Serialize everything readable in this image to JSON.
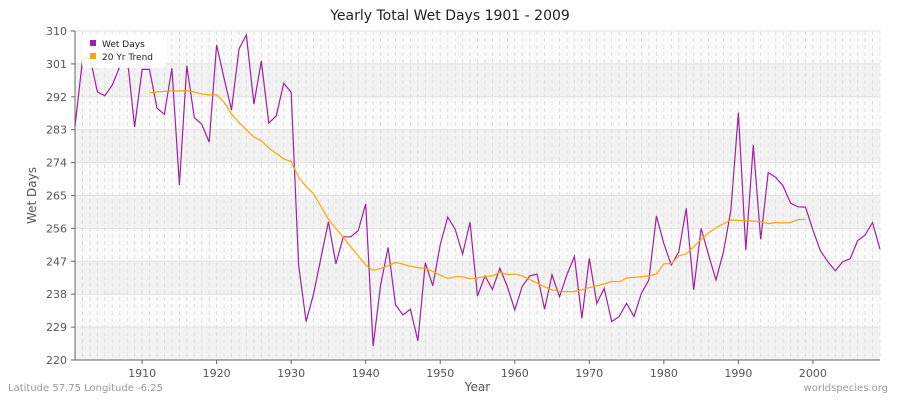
{
  "chart_data": {
    "type": "line",
    "title": "Yearly Total Wet Days 1901 - 2009",
    "xlabel": "Year",
    "ylabel": "Wet Days",
    "xlim": [
      1901,
      2009
    ],
    "ylim": [
      220,
      310
    ],
    "yticks": [
      220,
      229,
      238,
      247,
      256,
      265,
      274,
      283,
      292,
      301,
      310
    ],
    "xticks": [
      1910,
      1920,
      1930,
      1940,
      1950,
      1960,
      1970,
      1980,
      1990,
      2000
    ],
    "grid": true,
    "legend": "top-left",
    "series": [
      {
        "name": "Wet Days",
        "color": "#a020a0",
        "x_start": 1901,
        "values": [
          284,
          302,
          303,
          293.3,
          292.3,
          295.2,
          300.2,
          303,
          283.7,
          299.5,
          299.5,
          288.9,
          287.2,
          299.8,
          267.9,
          300.5,
          286.3,
          284.5,
          279.6,
          306.2,
          297,
          288.4,
          305.1,
          308.9,
          290,
          301.8,
          284.8,
          286.8,
          295.7,
          293.2,
          246,
          230.5,
          238,
          248,
          257.8,
          246.3,
          253.7,
          253.7,
          255.4,
          262.7,
          223.8,
          240.5,
          250.8,
          235.1,
          232.3,
          233.9,
          225.2,
          246.6,
          240.3,
          251.5,
          259.1,
          255.8,
          249,
          257.7,
          237.5,
          243,
          239.3,
          245.1,
          240.1,
          233.7,
          240.1,
          243,
          243.5,
          233.9,
          243.3,
          237.3,
          243.3,
          248.3,
          231.4,
          247.8,
          235.5,
          239.6,
          230.5,
          231.9,
          235.5,
          231.9,
          238.3,
          241.9,
          259.4,
          251.9,
          246,
          249.6,
          261.5,
          239.2,
          256,
          248.7,
          241.9,
          249.6,
          261,
          287.7,
          250.1,
          278.8,
          253,
          271.3,
          270,
          267.6,
          262.9,
          261.9,
          261.8,
          255.6,
          249.9,
          246.9,
          244.4,
          246.9,
          247.7,
          252.6,
          254.2,
          257.6,
          250.3
        ]
      },
      {
        "name": "20 Yr Trend",
        "color": "#ffa500",
        "x_start": 1911,
        "values": [
          293.1,
          293.3,
          293.5,
          293.6,
          293.6,
          293.7,
          293.3,
          292.8,
          292.5,
          292.6,
          290.5,
          287.3,
          285,
          283,
          281,
          280,
          278,
          276.5,
          275,
          274.3,
          270,
          267.5,
          265.5,
          262,
          258.5,
          256,
          253.5,
          251,
          248.5,
          246,
          244.5,
          245,
          245.8,
          246.7,
          246.2,
          245.6,
          245.3,
          245,
          244.2,
          243.2,
          242.3,
          242.8,
          242.8,
          242.2,
          242.5,
          242.8,
          243,
          244,
          243.4,
          243.5,
          243,
          242,
          241,
          240,
          239.2,
          238.8,
          238.7,
          238.7,
          239.2,
          239.8,
          240.3,
          240.8,
          241.5,
          241.4,
          242.4,
          242.6,
          242.8,
          243,
          243.5,
          246.3,
          246.4,
          248.5,
          249,
          251,
          253,
          254.8,
          256.2,
          257.3,
          258.3,
          258.2,
          258.1,
          258,
          257.8,
          257.3,
          257.6,
          257.5,
          257.6,
          258.4,
          258.5
        ]
      }
    ]
  },
  "footer": {
    "location": "Latitude 57.75 Longitude -6.25",
    "site": "worldspecies.org"
  }
}
